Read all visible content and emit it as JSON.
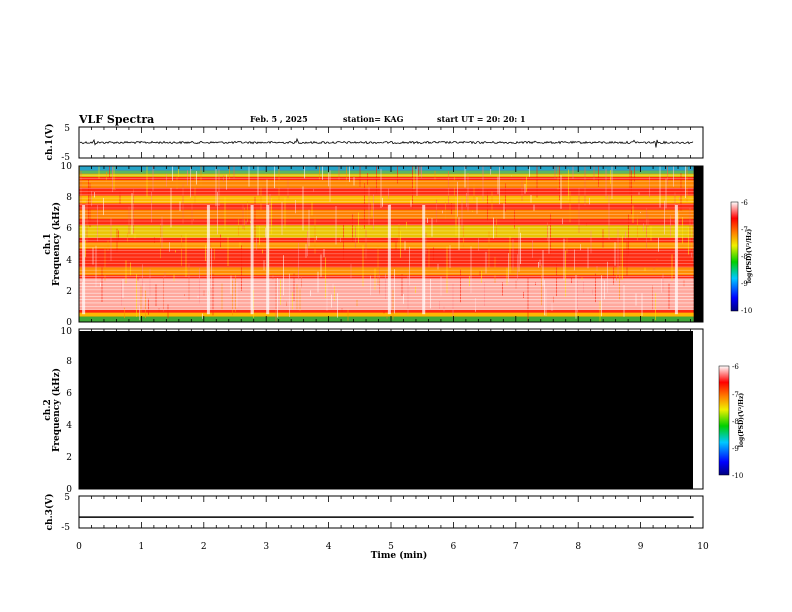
{
  "header": {
    "title": "VLF Spectra",
    "date": "Feb. 5 , 2025",
    "station": "station= KAG",
    "start_ut": "start  UT  =   20: 20: 1"
  },
  "chart_data": [
    {
      "id": "ch1-waveform",
      "type": "line",
      "ylabel": "ch.1(V)",
      "yticks": [
        "5",
        "-5"
      ],
      "ylim": [
        -5,
        5
      ],
      "xlim": [
        0,
        10
      ],
      "baseline": 0,
      "description_values": "noise trace around 0 V with spikes near 0.25, 3.5, 7.3, 8.9, 9.25 min",
      "spikes_min": [
        0.25,
        3.5,
        7.3,
        8.9,
        9.25
      ],
      "data_end_min": 9.85
    },
    {
      "id": "ch1-spectrogram",
      "type": "heatmap",
      "ylabel": "Frequency  (kHz)",
      "channel": "ch.1",
      "yticks": [
        "0",
        "2",
        "4",
        "6",
        "8",
        "10"
      ],
      "ylim": [
        0,
        10
      ],
      "xlim": [
        0,
        10
      ],
      "data_end_min": 9.85,
      "colorbar": {
        "min": -10,
        "max": -6,
        "ticks": [
          "-6",
          "-7",
          "-8",
          "-9",
          "-10"
        ],
        "label": "log(PSD)(V²/Hz)"
      }
    },
    {
      "id": "ch2-spectrogram",
      "type": "heatmap",
      "ylabel": "Frequency  (kHz)",
      "channel": "ch.2",
      "yticks": [
        "0",
        "2",
        "4",
        "6",
        "8",
        "10"
      ],
      "ylim": [
        0,
        10
      ],
      "xlim": [
        0,
        10
      ],
      "data_end_min": 9.85,
      "note": "no signal (all black)",
      "colorbar": {
        "min": -10,
        "max": -6,
        "ticks": [
          "-6",
          "-7",
          "-8",
          "-9",
          "-10"
        ],
        "label": "log(PSD)(V²/Hz)"
      }
    },
    {
      "id": "ch3-waveform",
      "type": "line",
      "ylabel": "ch.3(V)",
      "yticks": [
        "5",
        "-5"
      ],
      "ylim": [
        -5,
        5
      ],
      "xlim": [
        0,
        10
      ],
      "level": -1.6,
      "data_end_min": 9.85
    }
  ],
  "xaxis": {
    "label": "Time  (min)",
    "ticks": [
      "0",
      "1",
      "2",
      "3",
      "4",
      "5",
      "6",
      "7",
      "8",
      "9",
      "10"
    ]
  },
  "colors": {
    "trace": "#000000",
    "spectrogram_bg": "#000000",
    "colormap": [
      "#0000aa",
      "#0050ff",
      "#00c0ff",
      "#00d060",
      "#60e000",
      "#e8f000",
      "#ff9000",
      "#ff1a00",
      "#ff8080",
      "#ffffff"
    ]
  }
}
